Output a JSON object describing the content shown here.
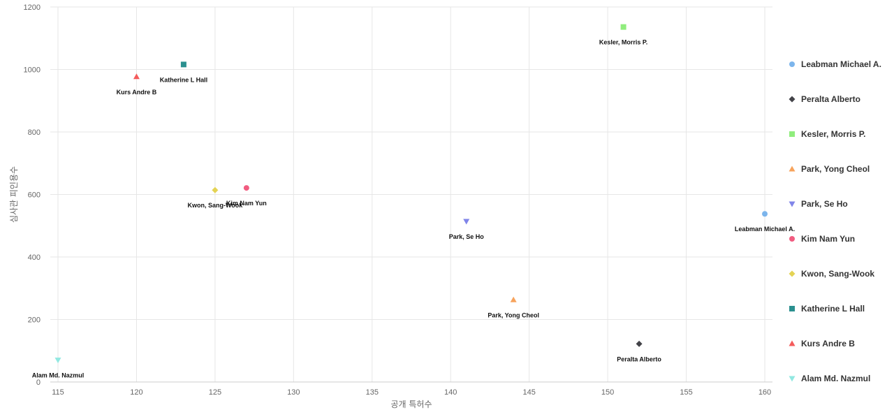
{
  "chart_data": {
    "type": "scatter",
    "xlabel": "공개 특허수",
    "ylabel": "심사관 피인용수",
    "xlim": [
      115,
      160
    ],
    "ylim": [
      0,
      1200
    ],
    "x_ticks": [
      115,
      120,
      125,
      130,
      135,
      140,
      145,
      150,
      155,
      160
    ],
    "y_ticks": [
      0,
      200,
      400,
      600,
      800,
      1000,
      1200
    ],
    "grid": true,
    "legend_position": "right",
    "series": [
      {
        "name": "Leabman Michael A.",
        "x": 160,
        "y": 538,
        "marker": "circle",
        "color": "#7cb5ec"
      },
      {
        "name": "Peralta Alberto",
        "x": 152,
        "y": 122,
        "marker": "diamond",
        "color": "#434348"
      },
      {
        "name": "Kesler, Morris P.",
        "x": 151,
        "y": 1136,
        "marker": "square",
        "color": "#90ed7d"
      },
      {
        "name": "Park, Yong Cheol",
        "x": 144,
        "y": 263,
        "marker": "triangle",
        "color": "#f7a35c"
      },
      {
        "name": "Park, Se Ho",
        "x": 141,
        "y": 514,
        "marker": "triangle-down",
        "color": "#8085e9"
      },
      {
        "name": "Kim Nam Yun",
        "x": 127,
        "y": 621,
        "marker": "circle",
        "color": "#f15c80"
      },
      {
        "name": "Kwon, Sang-Wook",
        "x": 125,
        "y": 614,
        "marker": "diamond",
        "color": "#e4d354"
      },
      {
        "name": "Katherine L Hall",
        "x": 123,
        "y": 1016,
        "marker": "square",
        "color": "#2b908f"
      },
      {
        "name": "Kurs Andre B",
        "x": 120,
        "y": 977,
        "marker": "triangle",
        "color": "#f45b5b"
      },
      {
        "name": "Alam Md. Nazmul",
        "x": 115,
        "y": 70,
        "marker": "triangle-down",
        "color": "#91e8e1"
      }
    ]
  }
}
